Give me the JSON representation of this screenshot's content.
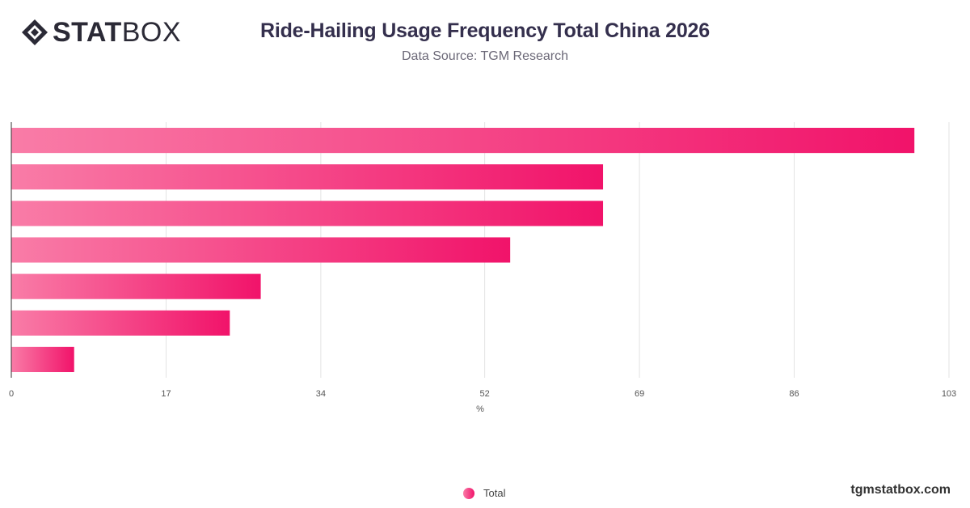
{
  "brand": {
    "logo_bold": "STAT",
    "logo_light": "BOX",
    "site": "tgmstatbox.com",
    "accent_start": "#f97ca7",
    "accent_end": "#f1136a"
  },
  "chart_data": {
    "type": "bar",
    "orientation": "horizontal",
    "title": "Ride-Hailing Usage Frequency Total China 2026",
    "subtitle": "Data Source: TGM Research",
    "xlabel": "%",
    "ylabel": "",
    "xlim": [
      0,
      103
    ],
    "xticks": [
      0,
      17,
      34,
      52,
      69,
      86,
      103
    ],
    "grid": true,
    "legend_position": "bottom-center",
    "series": [
      {
        "name": "Total",
        "values": [
          99.2,
          65.0,
          65.0,
          54.8,
          27.4,
          24.0,
          6.9
        ]
      }
    ]
  }
}
